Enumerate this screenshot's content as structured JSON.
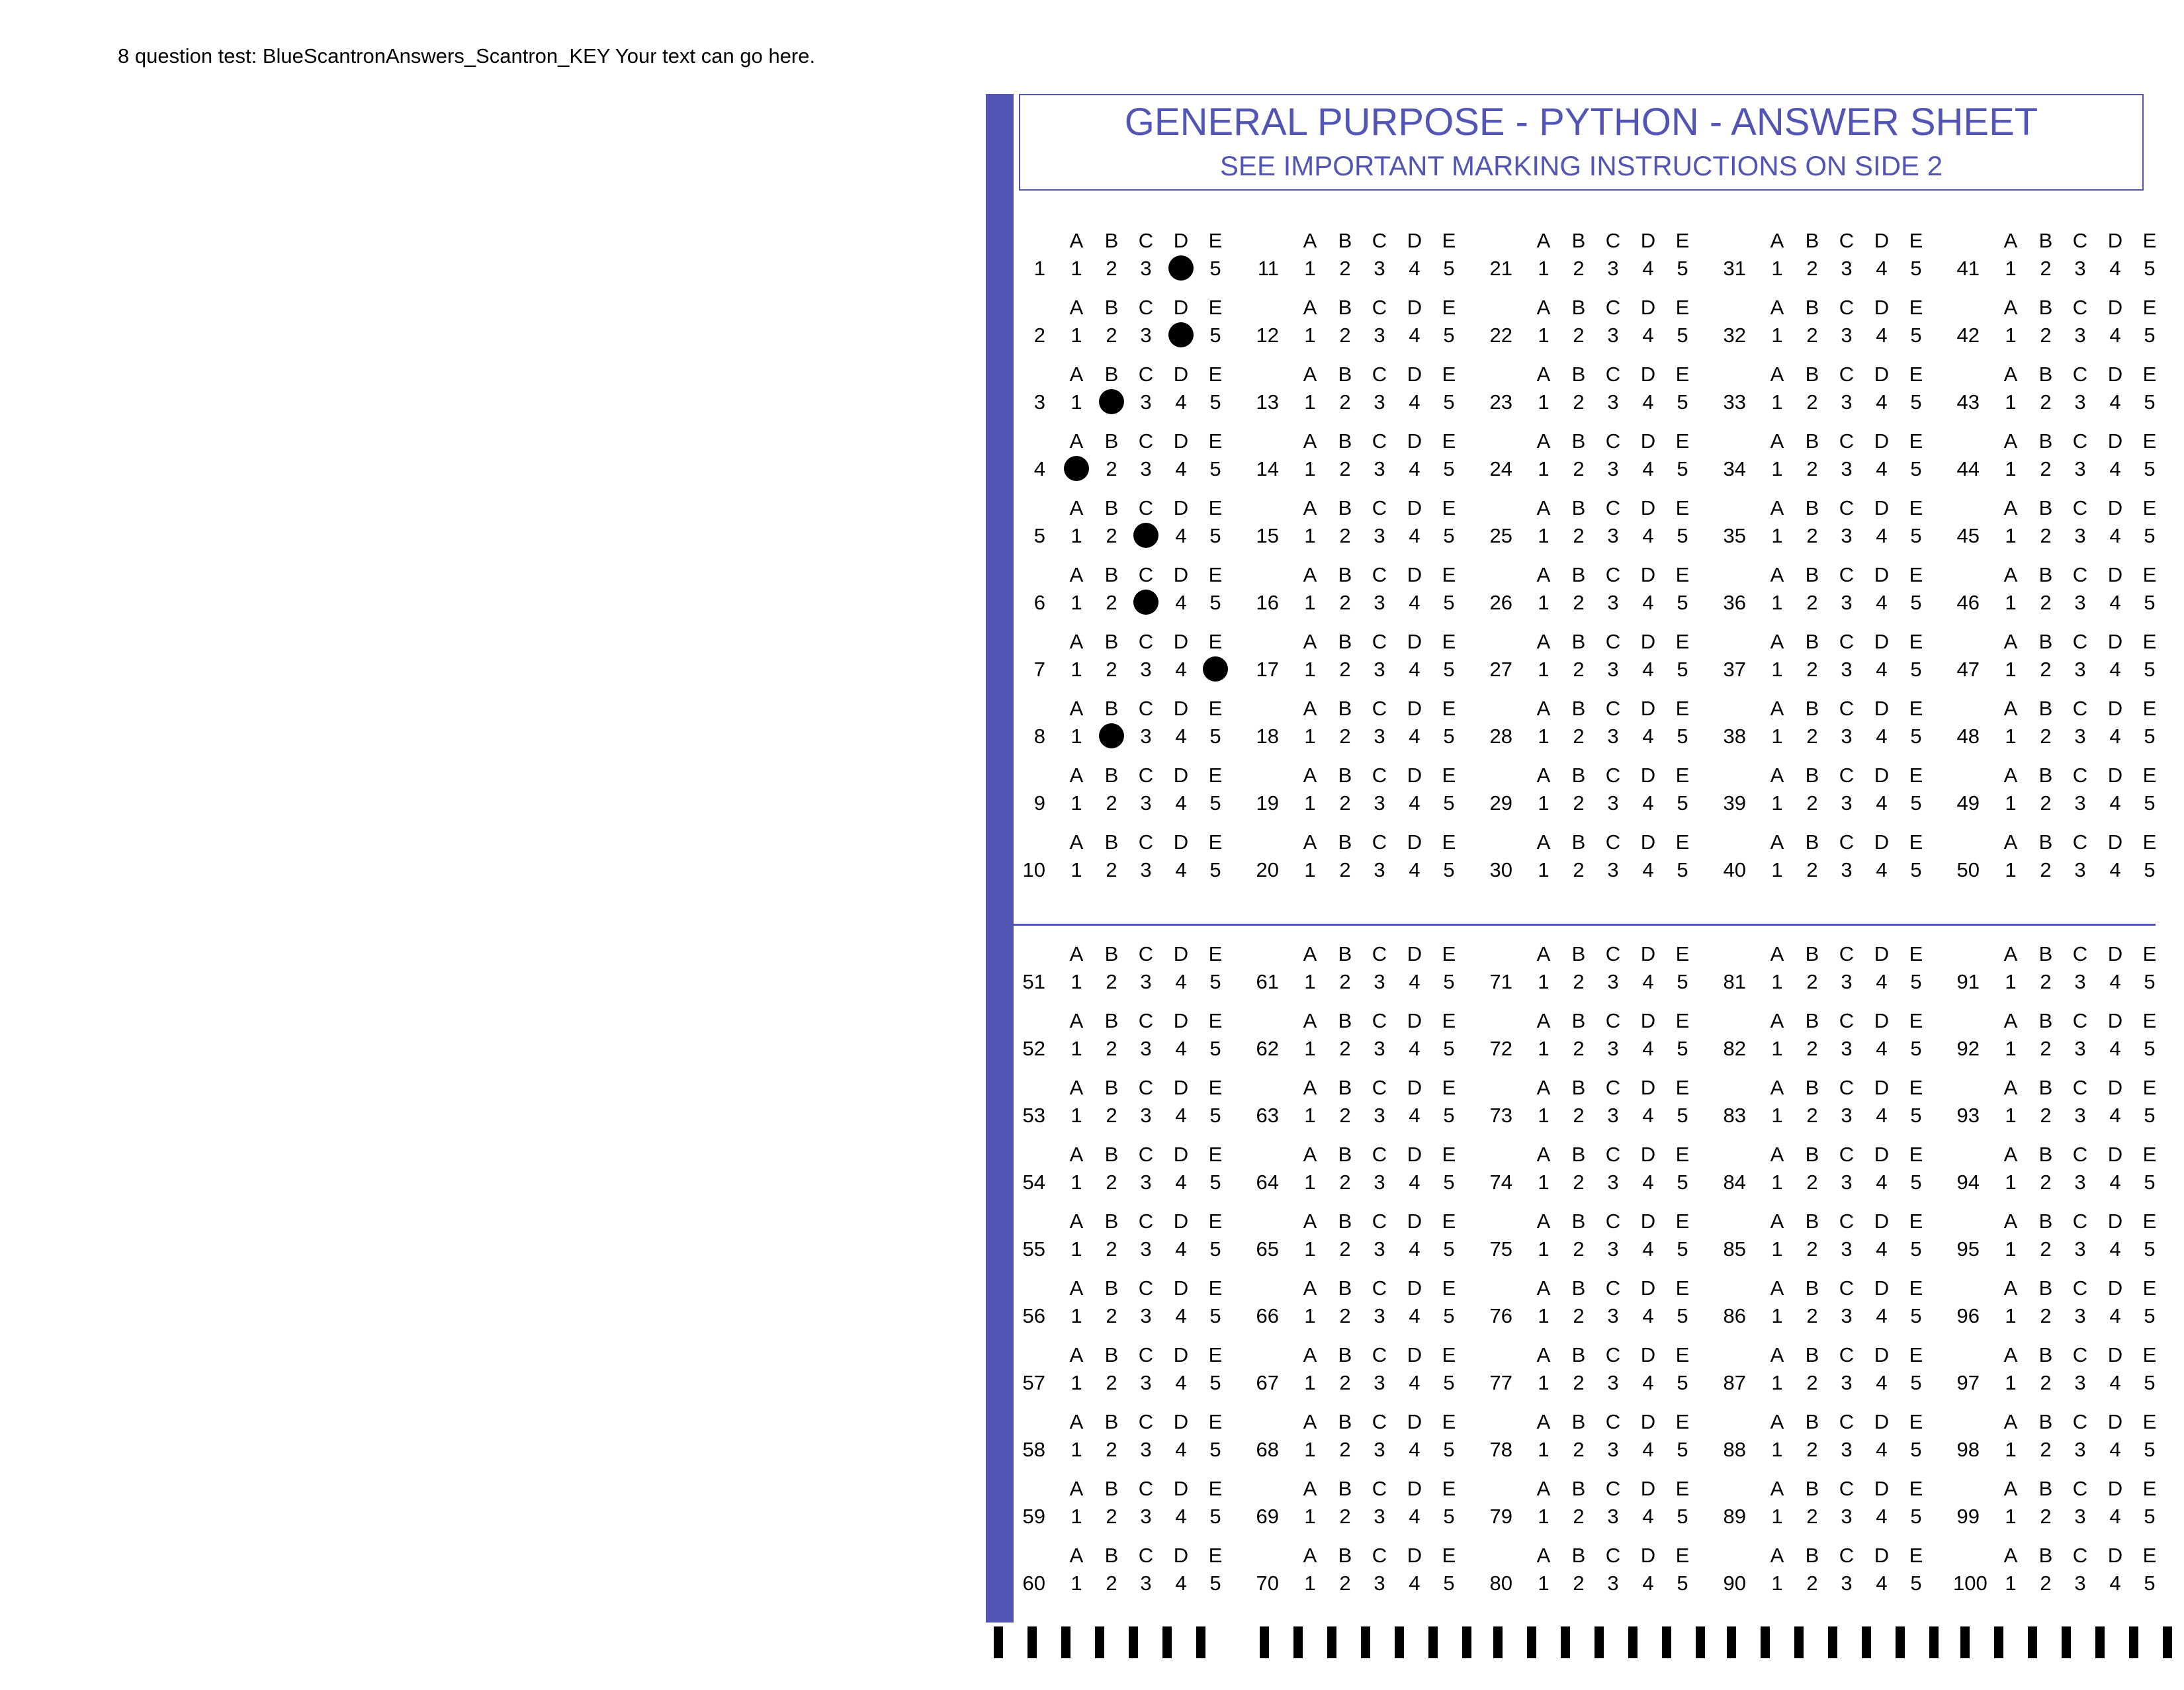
{
  "caption": "8 question test: BlueScantronAnswers_Scantron_KEY Your text can go here.",
  "header": {
    "title": "GENERAL PURPOSE - PYTHON - ANSWER SHEET",
    "subtitle": "SEE IMPORTANT MARKING INSTRUCTIONS ON SIDE 2"
  },
  "colors": {
    "accent": "#5355b4",
    "ink": "#000000",
    "paper": "#ffffff"
  },
  "option_letters": [
    "A",
    "B",
    "C",
    "D",
    "E"
  ],
  "option_numbers": [
    "1",
    "2",
    "3",
    "4",
    "5"
  ],
  "question_count": 100,
  "answer_key": {
    "1": "D",
    "2": "D",
    "3": "B",
    "4": "A",
    "5": "C",
    "6": "C",
    "7": "E",
    "8": "B"
  },
  "timing_mark_count": 35
}
